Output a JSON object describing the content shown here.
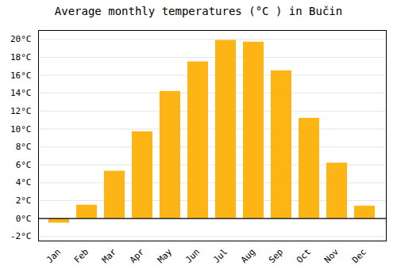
{
  "chart_data": {
    "type": "bar",
    "title": "Average monthly temperatures (°C ) in Bučin",
    "categories": [
      "Jan",
      "Feb",
      "Mar",
      "Apr",
      "May",
      "Jun",
      "Jul",
      "Aug",
      "Sep",
      "Oct",
      "Nov",
      "Dec"
    ],
    "values": [
      -0.5,
      1.5,
      5.3,
      9.7,
      14.2,
      17.5,
      19.9,
      19.7,
      16.5,
      11.2,
      6.2,
      1.4
    ],
    "color": "#FDB515",
    "ylim": [
      -2.5,
      21
    ],
    "yticks": [
      {
        "value": -2,
        "label": "-2°C"
      },
      {
        "value": 0,
        "label": "0°C"
      },
      {
        "value": 2,
        "label": "2°C"
      },
      {
        "value": 4,
        "label": "4°C"
      },
      {
        "value": 6,
        "label": "6°C"
      },
      {
        "value": 8,
        "label": "8°C"
      },
      {
        "value": 10,
        "label": "10°C"
      },
      {
        "value": 12,
        "label": "12°C"
      },
      {
        "value": 14,
        "label": "14°C"
      },
      {
        "value": 16,
        "label": "16°C"
      },
      {
        "value": 18,
        "label": "18°C"
      },
      {
        "value": 20,
        "label": "20°C"
      }
    ],
    "grid": true
  }
}
